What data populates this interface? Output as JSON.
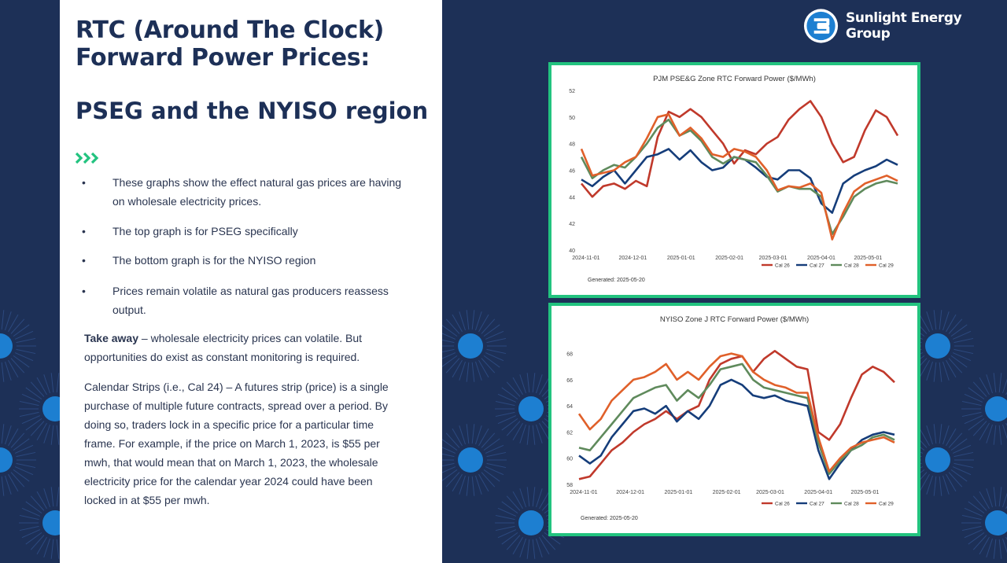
{
  "slide": {
    "title": "RTC (Around The Clock) Forward Power Prices:",
    "subtitle": "PSEG and the NYISO region",
    "chevron_icon": "triple-chevron-right-icon",
    "bullets": [
      "These graphs show the effect natural gas prices are having on wholesale electricity prices.",
      "The top graph is for PSEG specifically",
      "The bottom graph is for the NYISO region",
      "Prices remain volatile as natural gas producers reassess output."
    ],
    "bullet_char": "•",
    "takeaway_label": "Take away",
    "takeaway_text": " – wholesale electricity prices can volatile. But opportunities do exist as constant monitoring is required.",
    "calendar_text": "Calendar Strips (i.e., Cal 24) – A futures strip (price) is a single purchase of multiple future contracts, spread over a period. By doing so, traders lock in a specific price for a particular time frame.  For example, if the price on March 1, 2023, is $55 per mwh, that would mean that on March 1, 2023, the wholesale electricity price for the calendar year 2024 could have been locked in at $55 per mwh."
  },
  "brand": {
    "name": "Sunlight Energy Group",
    "logo_icon": "sunlight-logo-icon"
  },
  "colors": {
    "navy": "#1d3057",
    "accent_green": "#22c37f",
    "sun_blue": "#1d7fd1",
    "cal26": "#c0392b",
    "cal27": "#153d7a",
    "cal28": "#5f8a5c",
    "cal29": "#e0602a"
  },
  "chart_data": [
    {
      "type": "line",
      "title": "PJM PSE&G Zone RTC Forward Power ($/MWh)",
      "footer": "Generated: 2025-05-20",
      "x_ticks": [
        "2024-11-01",
        "2024-12-01",
        "2025-01-01",
        "2025-02-01",
        "2025-03-01",
        "2025-04-01",
        "2025-05-01"
      ],
      "y_ticks": [
        40,
        42,
        44,
        46,
        48,
        50,
        52
      ],
      "ylim": [
        40,
        52
      ],
      "xlim": [
        "2024-10-29",
        "2025-05-20"
      ],
      "legend_position": "bottom-right",
      "x": [
        "2024-10-29",
        "2024-11-05",
        "2024-11-12",
        "2024-11-19",
        "2024-11-26",
        "2024-12-03",
        "2024-12-10",
        "2024-12-17",
        "2024-12-24",
        "2024-12-31",
        "2025-01-07",
        "2025-01-14",
        "2025-01-21",
        "2025-01-28",
        "2025-02-04",
        "2025-02-11",
        "2025-02-18",
        "2025-02-25",
        "2025-03-04",
        "2025-03-11",
        "2025-03-18",
        "2025-03-25",
        "2025-04-01",
        "2025-04-08",
        "2025-04-15",
        "2025-04-22",
        "2025-04-29",
        "2025-05-06",
        "2025-05-13",
        "2025-05-20"
      ],
      "series": [
        {
          "name": "Cal 26",
          "color": "#c0392b",
          "values": [
            45.0,
            44.0,
            44.8,
            45.0,
            44.6,
            45.2,
            44.8,
            48.5,
            50.4,
            50.0,
            50.6,
            50.0,
            49.0,
            48.0,
            46.5,
            47.5,
            47.2,
            48.0,
            48.5,
            49.8,
            50.6,
            51.2,
            50.0,
            48.0,
            46.6,
            47.0,
            49.0,
            50.5,
            50.0,
            48.6
          ]
        },
        {
          "name": "Cal 27",
          "color": "#153d7a",
          "values": [
            45.3,
            44.8,
            45.5,
            46.0,
            45.0,
            46.0,
            47.0,
            47.2,
            47.6,
            46.8,
            47.5,
            46.6,
            46.0,
            46.2,
            47.0,
            46.8,
            46.2,
            45.5,
            45.3,
            46.0,
            46.0,
            45.4,
            43.5,
            42.8,
            45.0,
            45.6,
            46.0,
            46.3,
            46.8,
            46.4
          ]
        },
        {
          "name": "Cal 28",
          "color": "#5f8a5c",
          "values": [
            47.0,
            45.4,
            46.0,
            46.4,
            46.2,
            47.0,
            48.0,
            49.2,
            49.8,
            48.6,
            49.0,
            48.2,
            47.0,
            46.5,
            47.0,
            46.8,
            46.6,
            45.6,
            44.4,
            44.8,
            44.6,
            44.6,
            44.0,
            41.2,
            42.5,
            44.0,
            44.6,
            45.0,
            45.2,
            45.0
          ]
        },
        {
          "name": "Cal 29",
          "color": "#e0602a",
          "values": [
            47.6,
            45.6,
            45.8,
            46.0,
            46.6,
            47.0,
            48.4,
            50.0,
            50.2,
            48.6,
            49.2,
            48.4,
            47.2,
            47.0,
            47.6,
            47.4,
            47.0,
            46.0,
            44.5,
            44.8,
            44.7,
            45.0,
            44.3,
            40.8,
            42.8,
            44.4,
            45.0,
            45.3,
            45.6,
            45.2
          ]
        }
      ]
    },
    {
      "type": "line",
      "title": "NYISO Zone J RTC Forward Power ($/MWh)",
      "footer": "Generated: 2025-05-20",
      "x_ticks": [
        "2024-11-01",
        "2024-12-01",
        "2025-01-01",
        "2025-02-01",
        "2025-03-01",
        "2025-04-01",
        "2025-05-01"
      ],
      "y_ticks": [
        58,
        60,
        62,
        64,
        66,
        68
      ],
      "ylim": [
        58,
        69
      ],
      "xlim": [
        "2024-10-29",
        "2025-05-20"
      ],
      "legend_position": "bottom-right",
      "x": [
        "2024-10-29",
        "2024-11-05",
        "2024-11-12",
        "2024-11-19",
        "2024-11-26",
        "2024-12-03",
        "2024-12-10",
        "2024-12-17",
        "2024-12-24",
        "2024-12-31",
        "2025-01-07",
        "2025-01-14",
        "2025-01-21",
        "2025-01-28",
        "2025-02-04",
        "2025-02-11",
        "2025-02-18",
        "2025-02-25",
        "2025-03-04",
        "2025-03-11",
        "2025-03-18",
        "2025-03-25",
        "2025-04-01",
        "2025-04-08",
        "2025-04-15",
        "2025-04-22",
        "2025-04-29",
        "2025-05-06",
        "2025-05-13",
        "2025-05-20"
      ],
      "series": [
        {
          "name": "Cal 26",
          "color": "#c0392b",
          "values": [
            58.4,
            58.6,
            59.6,
            60.6,
            61.2,
            62.0,
            62.6,
            63.0,
            63.6,
            63.0,
            63.6,
            64.0,
            66.0,
            67.2,
            67.6,
            67.8,
            66.6,
            67.6,
            68.2,
            67.6,
            67.0,
            66.8,
            62.0,
            61.4,
            62.6,
            64.6,
            66.4,
            67.0,
            66.6,
            65.8
          ]
        },
        {
          "name": "Cal 27",
          "color": "#153d7a",
          "values": [
            60.2,
            59.6,
            60.2,
            61.6,
            62.6,
            63.6,
            63.8,
            63.4,
            64.0,
            62.8,
            63.6,
            63.0,
            64.0,
            65.6,
            66.0,
            65.6,
            64.8,
            64.6,
            64.8,
            64.4,
            64.2,
            64.0,
            60.6,
            58.4,
            59.6,
            60.6,
            61.4,
            61.8,
            62.0,
            61.8
          ]
        },
        {
          "name": "Cal 28",
          "color": "#5f8a5c",
          "values": [
            60.8,
            60.6,
            61.6,
            62.6,
            63.6,
            64.6,
            65.0,
            65.4,
            65.6,
            64.4,
            65.2,
            64.6,
            65.6,
            66.8,
            67.0,
            67.2,
            66.0,
            65.4,
            65.2,
            65.0,
            64.8,
            64.6,
            61.2,
            58.8,
            59.8,
            60.6,
            61.0,
            61.6,
            61.8,
            61.4
          ]
        },
        {
          "name": "Cal 29",
          "color": "#e0602a",
          "values": [
            63.4,
            62.2,
            63.0,
            64.4,
            65.2,
            66.0,
            66.2,
            66.6,
            67.2,
            66.0,
            66.6,
            66.0,
            67.0,
            67.8,
            68.0,
            67.8,
            66.6,
            66.0,
            65.6,
            65.4,
            65.0,
            65.0,
            61.6,
            59.0,
            60.0,
            60.8,
            61.2,
            61.4,
            61.6,
            61.2
          ]
        }
      ]
    }
  ]
}
